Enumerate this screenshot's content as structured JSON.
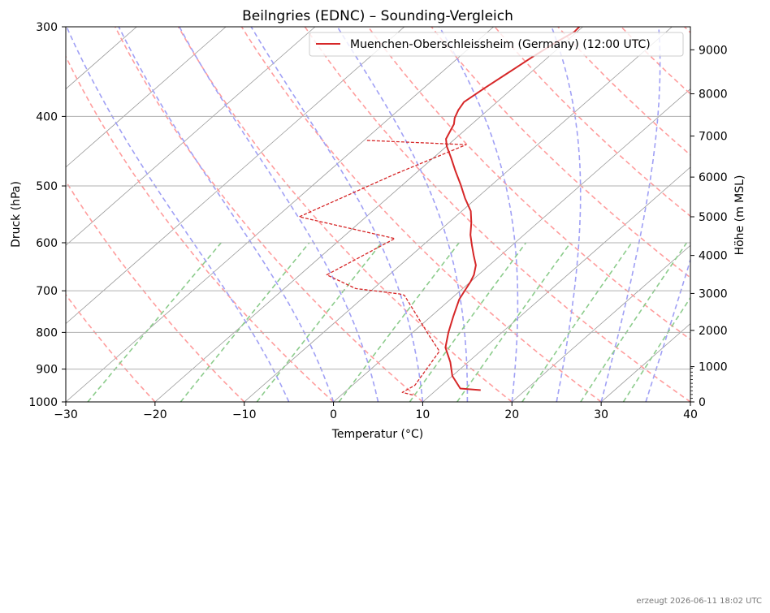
{
  "chart_data": {
    "type": "line",
    "title": "Beilngries (EDNC) – Sounding-Vergleich",
    "xlabel": "Temperatur (°C)",
    "ylabel": "Druck (hPa)",
    "y2label": "Höhe (m MSL)",
    "xlim": [
      -30,
      40
    ],
    "ylim": [
      1000,
      300
    ],
    "yscale": "log",
    "x_ticks": [
      "−30",
      "−20",
      "−10",
      "0",
      "10",
      "20",
      "30",
      "40"
    ],
    "y_ticks": [
      "300",
      "400",
      "500",
      "600",
      "700",
      "800",
      "900",
      "1000"
    ],
    "y2_ticks": [
      "0",
      "1000",
      "2000",
      "3000",
      "4000",
      "5000",
      "6000",
      "7000",
      "8000",
      "9000"
    ],
    "y2_pressures": [
      1000,
      893,
      795,
      706,
      625,
      552,
      486,
      426,
      372,
      323
    ],
    "grid": true,
    "legend_position": "top-right",
    "legend": [
      "Muenchen-Oberschleissheim (Germany) (12:00 UTC)"
    ],
    "series": [
      {
        "name": "Muenchen-Oberschleissheim (Germany) (12:00 UTC)",
        "kind": "temperature",
        "color": "#d62728",
        "style": "solid",
        "points": [
          [
            15.0,
            963
          ],
          [
            12.5,
            958
          ],
          [
            10.0,
            920
          ],
          [
            8.0,
            880
          ],
          [
            5.6,
            840
          ],
          [
            4.0,
            800
          ],
          [
            2.5,
            760
          ],
          [
            1.0,
            720
          ],
          [
            0.5,
            700
          ],
          [
            0.0,
            680
          ],
          [
            -0.5,
            665
          ],
          [
            -1.5,
            645
          ],
          [
            -3.0,
            625
          ],
          [
            -4.5,
            605
          ],
          [
            -6.0,
            585
          ],
          [
            -7.5,
            562
          ],
          [
            -9.0,
            542
          ],
          [
            -11.3,
            520
          ],
          [
            -13.5,
            498
          ],
          [
            -15.8,
            477
          ],
          [
            -18.0,
            457
          ],
          [
            -20.0,
            440
          ],
          [
            -21.0,
            430
          ],
          [
            -21.5,
            420
          ],
          [
            -22.0,
            410
          ],
          [
            -22.7,
            402
          ],
          [
            -23.3,
            392
          ],
          [
            -23.7,
            382
          ],
          [
            -23.2,
            366
          ],
          [
            -22.5,
            348
          ],
          [
            -21.8,
            331
          ],
          [
            -21.0,
            315
          ],
          [
            -20.3,
            305
          ],
          [
            -20.4,
            299
          ]
        ]
      },
      {
        "name": "",
        "kind": "dewpoint",
        "color": "#d62728",
        "style": "dashed",
        "points": [
          [
            8.0,
            978
          ],
          [
            6.5,
            970
          ],
          [
            7.0,
            948
          ],
          [
            5.4,
            850
          ],
          [
            2.0,
            805
          ],
          [
            -5.7,
            710
          ],
          [
            -6.4,
            707
          ],
          [
            -12.0,
            695
          ],
          [
            -17.0,
            665
          ],
          [
            -14.0,
            592
          ],
          [
            -27.5,
            552
          ],
          [
            -22.2,
            481
          ],
          [
            -18.0,
            438
          ],
          [
            -29.7,
            432
          ]
        ]
      }
    ],
    "background": {
      "isotherms_color": "#999999",
      "dry_adiabats_color": "#ff9d9d",
      "moist_adiabats_color": "#a0a0f5",
      "mixing_ratio_color": "#8ccc8c",
      "grid_color": "#b0b0b0"
    }
  },
  "footer": "erzeugt 2026-06-11 18:02 UTC"
}
